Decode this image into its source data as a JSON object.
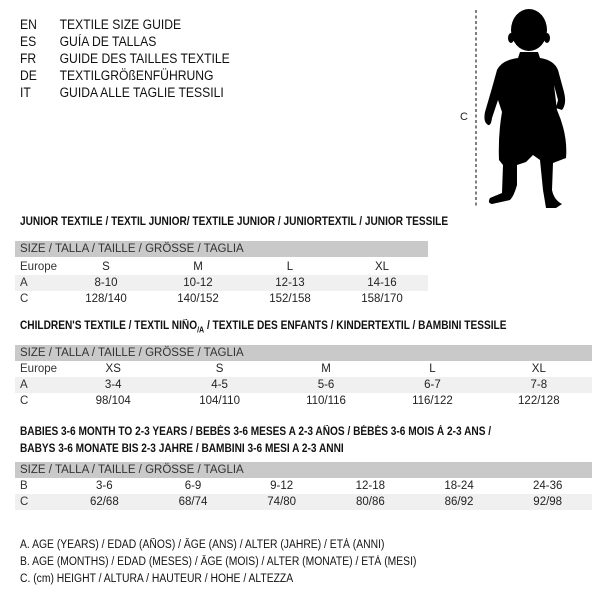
{
  "titles": [
    {
      "code": "EN",
      "text": "TEXTILE SIZE GUIDE"
    },
    {
      "code": "ES",
      "text": "GUÍA DE TALLAS"
    },
    {
      "code": "FR",
      "text": "GUIDE DES TAILLES TEXTILE"
    },
    {
      "code": "DE",
      "text": "TEXTILGRÖßENFÜHRUNG"
    },
    {
      "code": "IT",
      "text": "GUIDA ALLE TAGLIE TESSILI"
    }
  ],
  "figure": {
    "label": "C"
  },
  "junior": {
    "title": "JUNIOR TEXTILE / TEXTIL JUNIOR/ TEXTILE JUNIOR / JUNIORTEXTIL / JUNIOR TESSILE",
    "header": "SIZE / TALLA / TAILLE / GRÖSSE / TAGLIA",
    "rows": [
      {
        "label": "Europe",
        "cells": [
          "S",
          "M",
          "L",
          "XL"
        ]
      },
      {
        "label": "A",
        "cells": [
          "8-10",
          "10-12",
          "12-13",
          "14-16"
        ]
      },
      {
        "label": "C",
        "cells": [
          "128/140",
          "140/152",
          "152/158",
          "158/170"
        ]
      }
    ]
  },
  "children": {
    "title_a": "CHILDREN'S TEXTILE / TEXTIL NIÑO",
    "title_sub": "/A",
    "title_b": " / TEXTILE DES ENFANTS / KINDERTEXTIL / BAMBINI TESSILE",
    "header": "SIZE / TALLA / TAILLE / GRÖSSE / TAGLIA",
    "rows": [
      {
        "label": "Europe",
        "cells": [
          "XS",
          "S",
          "M",
          "L",
          "XL"
        ]
      },
      {
        "label": "A",
        "cells": [
          "3-4",
          "4-5",
          "5-6",
          "6-7",
          "7-8"
        ]
      },
      {
        "label": "C",
        "cells": [
          "98/104",
          "104/110",
          "110/116",
          "116/122",
          "122/128"
        ]
      }
    ]
  },
  "babies": {
    "title_line1": "BABIES 3-6 MONTH TO 2-3 YEARS / BEBÉS 3-6 MESES A 2-3 AÑOS / BÉBÉS 3-6 MOIS À 2-3 ANS /",
    "title_line2": "BABYS 3-6 MONATE BIS 2-3 JAHRE / BAMBINI 3-6 MESI A 2-3 ANNI",
    "header": "SIZE / TALLA / TAILLE / GRÖSSE / TAGLIA",
    "rows": [
      {
        "label": "B",
        "cells": [
          "3-6",
          "6-9",
          "9-12",
          "12-18",
          "18-24",
          "24-36"
        ]
      },
      {
        "label": "C",
        "cells": [
          "62/68",
          "68/74",
          "74/80",
          "80/86",
          "86/92",
          "92/98"
        ]
      }
    ]
  },
  "legend": [
    "A. AGE (YEARS) / EDAD (AÑOS) / ÂGE (ANS) / ALTER (JAHRE) / ETÀ (ANNI)",
    "B. AGE (MONTHS) / EDAD (MESES) / ÂGE (MOIS) / ALTER (MONATE) / ETÀ (MESI)",
    "C. (cm) HEIGHT / ALTURA / HAUTEUR / HÖHE / ALTEZZA"
  ]
}
